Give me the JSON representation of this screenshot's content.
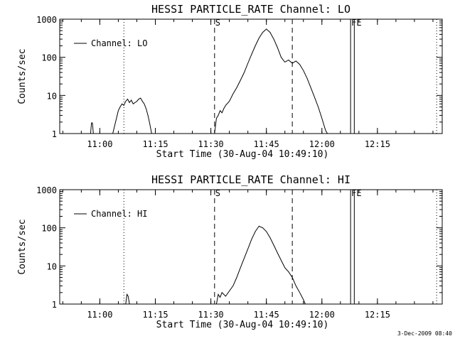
{
  "timestamp": "3-Dec-2009 08:40",
  "chart_data": [
    {
      "type": "line",
      "title": "HESSI PARTICLE_RATE Channel: LO",
      "xlabel": "Start Time (30-Aug-04 10:49:10)",
      "ylabel": "Counts/sec",
      "yscale": "log",
      "ylim": [
        1,
        1000
      ],
      "yticks": [
        "1",
        "10",
        "100",
        "1000"
      ],
      "xlim": [
        "10:49:10",
        "12:32:30"
      ],
      "xticks": [
        "11:00",
        "11:15",
        "11:30",
        "11:45",
        "12:00",
        "12:15"
      ],
      "legend": {
        "entry": "Channel: LO",
        "position": "top-left"
      },
      "markers": [
        {
          "x": "11:06:30",
          "style": "dotted",
          "label": ""
        },
        {
          "x": "11:31:00",
          "style": "dashed",
          "label": "S"
        },
        {
          "x": "11:52:00",
          "style": "dashed",
          "label": ""
        },
        {
          "x": "12:07:45",
          "style": "solid",
          "label": "FE"
        },
        {
          "x": "12:08:45",
          "style": "solid",
          "label": ""
        },
        {
          "x": "12:31:00",
          "style": "dotted",
          "label": ""
        }
      ],
      "series": [
        {
          "name": "Channel: LO",
          "segments": [
            [
              [
                "10:57:30",
                1
              ],
              [
                "10:57:45",
                1.9
              ],
              [
                "10:58:00",
                1.9
              ],
              [
                "10:58:15",
                1
              ]
            ],
            [
              [
                "11:03:30",
                1
              ],
              [
                "11:04:30",
                2.5
              ],
              [
                "11:05:00",
                4
              ],
              [
                "11:05:30",
                5
              ],
              [
                "11:06:00",
                6
              ],
              [
                "11:06:30",
                5.5
              ],
              [
                "11:07:00",
                7
              ],
              [
                "11:07:30",
                8
              ],
              [
                "11:08:00",
                6.5
              ],
              [
                "11:08:30",
                7.5
              ],
              [
                "11:09:00",
                6
              ],
              [
                "11:09:30",
                6.5
              ],
              [
                "11:10:00",
                7
              ],
              [
                "11:10:30",
                8
              ],
              [
                "11:11:00",
                8.5
              ],
              [
                "11:11:30",
                7
              ],
              [
                "11:12:00",
                6
              ],
              [
                "11:12:30",
                4.5
              ],
              [
                "11:13:00",
                3
              ],
              [
                "11:13:30",
                1.8
              ],
              [
                "11:14:00",
                1
              ]
            ],
            [
              [
                "11:31:00",
                1
              ],
              [
                "11:31:30",
                2.5
              ],
              [
                "11:32:00",
                3
              ],
              [
                "11:32:30",
                4
              ],
              [
                "11:33:00",
                3.5
              ],
              [
                "11:33:30",
                4.5
              ],
              [
                "11:34:00",
                5.5
              ],
              [
                "11:35:00",
                7
              ],
              [
                "11:36:00",
                11
              ],
              [
                "11:37:00",
                16
              ],
              [
                "11:38:00",
                25
              ],
              [
                "11:39:00",
                40
              ],
              [
                "11:40:00",
                70
              ],
              [
                "11:41:00",
                120
              ],
              [
                "11:42:00",
                200
              ],
              [
                "11:43:00",
                320
              ],
              [
                "11:44:00",
                450
              ],
              [
                "11:45:00",
                550
              ],
              [
                "11:46:00",
                450
              ],
              [
                "11:47:00",
                300
              ],
              [
                "11:48:00",
                180
              ],
              [
                "11:49:00",
                100
              ],
              [
                "11:50:00",
                75
              ],
              [
                "11:51:00",
                85
              ],
              [
                "11:52:00",
                70
              ],
              [
                "11:53:00",
                80
              ],
              [
                "11:54:00",
                65
              ],
              [
                "11:55:00",
                45
              ],
              [
                "11:56:00",
                28
              ],
              [
                "11:57:00",
                16
              ],
              [
                "11:58:00",
                9
              ],
              [
                "11:59:00",
                5
              ],
              [
                "12:00:00",
                2.5
              ],
              [
                "12:01:00",
                1.2
              ],
              [
                "12:01:30",
                1
              ]
            ]
          ]
        }
      ]
    },
    {
      "type": "line",
      "title": "HESSI PARTICLE_RATE Channel: HI",
      "xlabel": "Start Time (30-Aug-04 10:49:10)",
      "ylabel": "Counts/sec",
      "yscale": "log",
      "ylim": [
        1,
        1000
      ],
      "yticks": [
        "1",
        "10",
        "100",
        "1000"
      ],
      "xlim": [
        "10:49:10",
        "12:32:30"
      ],
      "xticks": [
        "11:00",
        "11:15",
        "11:30",
        "11:45",
        "12:00",
        "12:15"
      ],
      "legend": {
        "entry": "Channel: HI",
        "position": "top-left"
      },
      "markers": [
        {
          "x": "11:06:30",
          "style": "dotted",
          "label": ""
        },
        {
          "x": "11:31:00",
          "style": "dashed",
          "label": "S"
        },
        {
          "x": "11:52:00",
          "style": "dashed",
          "label": ""
        },
        {
          "x": "12:07:45",
          "style": "solid",
          "label": "FE"
        },
        {
          "x": "12:08:45",
          "style": "solid",
          "label": ""
        },
        {
          "x": "12:31:00",
          "style": "dotted",
          "label": ""
        }
      ],
      "series": [
        {
          "name": "Channel: HI",
          "segments": [
            [
              [
                "11:07:00",
                1
              ],
              [
                "11:07:20",
                1.8
              ],
              [
                "11:07:40",
                1.6
              ],
              [
                "11:08:00",
                1
              ]
            ],
            [
              [
                "11:31:30",
                1
              ],
              [
                "11:32:00",
                1.8
              ],
              [
                "11:32:30",
                1.5
              ],
              [
                "11:33:00",
                2
              ],
              [
                "11:34:00",
                1.6
              ],
              [
                "11:35:00",
                2.2
              ],
              [
                "11:36:00",
                3
              ],
              [
                "11:37:00",
                5
              ],
              [
                "11:38:00",
                9
              ],
              [
                "11:39:00",
                16
              ],
              [
                "11:40:00",
                28
              ],
              [
                "11:41:00",
                50
              ],
              [
                "11:42:00",
                80
              ],
              [
                "11:43:00",
                110
              ],
              [
                "11:44:00",
                100
              ],
              [
                "11:45:00",
                80
              ],
              [
                "11:46:00",
                55
              ],
              [
                "11:47:00",
                35
              ],
              [
                "11:48:00",
                22
              ],
              [
                "11:49:00",
                14
              ],
              [
                "11:50:00",
                9
              ],
              [
                "11:51:00",
                7
              ],
              [
                "11:52:00",
                5
              ],
              [
                "11:53:00",
                3
              ],
              [
                "11:54:00",
                2
              ],
              [
                "11:55:00",
                1.3
              ],
              [
                "11:55:30",
                1
              ]
            ]
          ]
        }
      ]
    }
  ]
}
